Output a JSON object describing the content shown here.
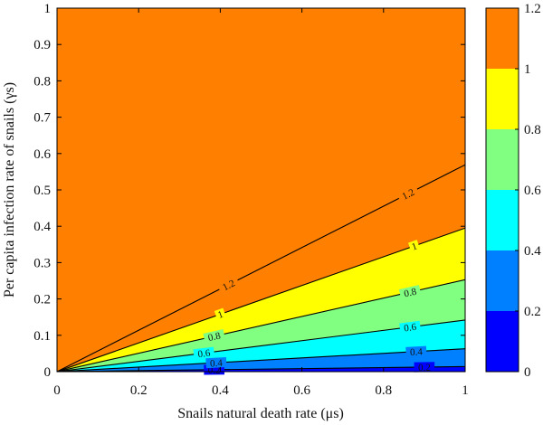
{
  "chart_data": {
    "type": "contour",
    "xlabel": "Snails natural death rate (μs)",
    "ylabel": "Per capita infection rate of snails (γs)",
    "xlim": [
      0,
      1
    ],
    "ylim": [
      0,
      1
    ],
    "x_ticks": [
      "0",
      "0.2",
      "0.4",
      "0.6",
      "0.8",
      "1"
    ],
    "y_ticks": [
      "0",
      "0.1",
      "0.2",
      "0.3",
      "0.4",
      "0.5",
      "0.6",
      "0.7",
      "0.8",
      "0.9",
      "1"
    ],
    "levels": [
      0,
      0.2,
      0.4,
      0.6,
      0.8,
      1.0,
      1.2
    ],
    "contour_lines": [
      {
        "label": "0.2",
        "value": 0.2,
        "y_at_x1": 0.014
      },
      {
        "label": "0.4",
        "value": 0.4,
        "y_at_x1": 0.063
      },
      {
        "label": "0.6",
        "value": 0.6,
        "y_at_x1": 0.142
      },
      {
        "label": "0.8",
        "value": 0.8,
        "y_at_x1": 0.253
      },
      {
        "label": "1",
        "value": 1.0,
        "y_at_x1": 0.395
      },
      {
        "label": "1.2",
        "value": 1.2,
        "y_at_x1": 0.569
      }
    ],
    "contour_label_positions": [
      {
        "text": "0.2",
        "x": 0.385
      },
      {
        "text": "0.2",
        "x": 0.9
      },
      {
        "text": "0.4",
        "x": 0.39
      },
      {
        "text": "0.4",
        "x": 0.88
      },
      {
        "text": "0.6",
        "x": 0.36
      },
      {
        "text": "0.6",
        "x": 0.865
      },
      {
        "text": "0.8",
        "x": 0.385
      },
      {
        "text": "0.8",
        "x": 0.865
      },
      {
        "text": "1",
        "x": 0.4
      },
      {
        "text": "1",
        "x": 0.875
      },
      {
        "text": "1.2",
        "x": 0.42
      },
      {
        "text": "1.2",
        "x": 0.86
      }
    ],
    "colorbar": {
      "range": [
        0,
        1.2
      ],
      "tick_labels": [
        "0",
        "0.2",
        "0.4",
        "0.6",
        "0.8",
        "1",
        "1.2"
      ],
      "band_colors": [
        "#0000ff",
        "#0080ff",
        "#00ffff",
        "#80ff80",
        "#ffff00",
        "#ff8000"
      ]
    },
    "line_color": "#000000"
  }
}
